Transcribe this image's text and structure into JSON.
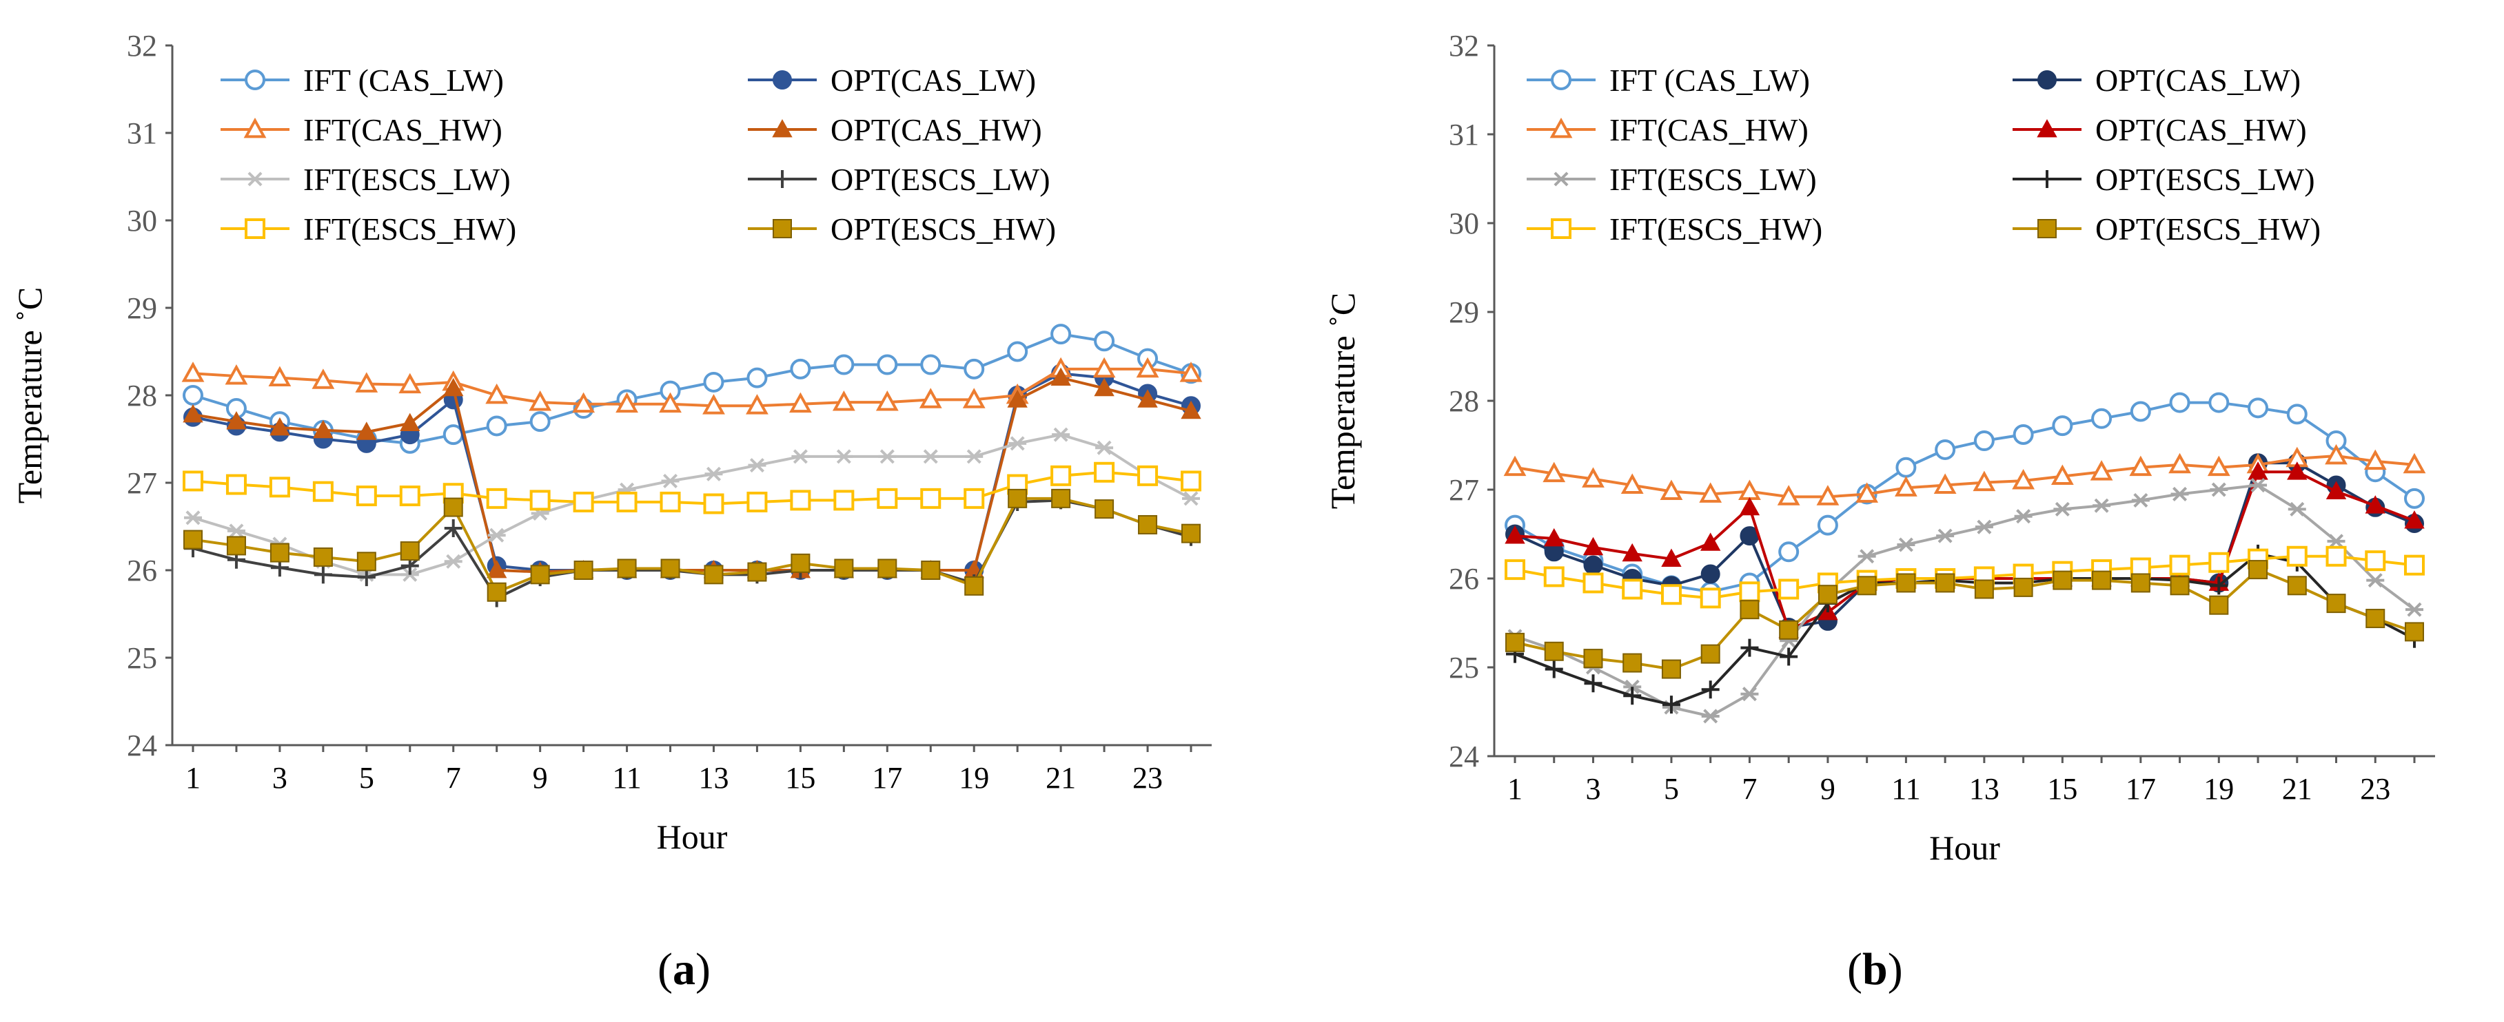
{
  "chart_data": [
    {
      "type": "line",
      "panel": "a",
      "ylabel": "Temperature  ˚C",
      "xlabel": "Hour",
      "ylim": [
        24,
        32
      ],
      "yticks": [
        24,
        25,
        26,
        27,
        28,
        29,
        30,
        31,
        32
      ],
      "xticks": [
        1,
        3,
        5,
        7,
        9,
        11,
        13,
        15,
        17,
        19,
        21,
        23
      ],
      "x": [
        1,
        2,
        3,
        4,
        5,
        6,
        7,
        8,
        9,
        10,
        11,
        12,
        13,
        14,
        15,
        16,
        17,
        18,
        19,
        20,
        21,
        22,
        23,
        24
      ],
      "grid": false,
      "legend": "top, two columns",
      "series": [
        {
          "name": "IFT (CAS_LW)",
          "color": "#5B9BD5",
          "marker": "circle-open",
          "values": [
            28.0,
            27.85,
            27.7,
            27.6,
            27.5,
            27.45,
            27.55,
            27.65,
            27.7,
            27.85,
            27.95,
            28.05,
            28.15,
            28.2,
            28.3,
            28.35,
            28.35,
            28.35,
            28.3,
            28.5,
            28.7,
            28.62,
            28.42,
            28.25
          ]
        },
        {
          "name": "OPT(CAS_LW)",
          "color": "#2F5597",
          "marker": "circle",
          "values": [
            27.75,
            27.65,
            27.58,
            27.5,
            27.45,
            27.55,
            27.95,
            26.05,
            26.0,
            26.0,
            26.0,
            26.0,
            26.0,
            26.0,
            26.0,
            26.0,
            26.0,
            26.0,
            26.0,
            28.0,
            28.25,
            28.2,
            28.02,
            27.88
          ]
        },
        {
          "name": "IFT(CAS_HW)",
          "color": "#ED7D31",
          "marker": "triangle-open",
          "values": [
            28.25,
            28.22,
            28.2,
            28.17,
            28.13,
            28.12,
            28.15,
            28.0,
            27.92,
            27.9,
            27.9,
            27.9,
            27.88,
            27.88,
            27.9,
            27.92,
            27.92,
            27.95,
            27.95,
            28.0,
            28.3,
            28.3,
            28.3,
            28.25
          ]
        },
        {
          "name": "OPT(CAS_HW)",
          "color": "#C55A11",
          "marker": "triangle",
          "values": [
            27.78,
            27.7,
            27.63,
            27.6,
            27.58,
            27.68,
            28.08,
            26.0,
            25.98,
            26.0,
            26.0,
            26.0,
            26.0,
            26.0,
            26.0,
            26.0,
            26.0,
            26.0,
            26.0,
            27.95,
            28.2,
            28.08,
            27.95,
            27.82
          ]
        },
        {
          "name": "IFT(ESCS_LW)",
          "color": "#BFBFBF",
          "marker": "star",
          "values": [
            26.6,
            26.45,
            26.3,
            26.1,
            25.95,
            25.95,
            26.1,
            26.4,
            26.65,
            26.8,
            26.92,
            27.02,
            27.1,
            27.2,
            27.3,
            27.3,
            27.3,
            27.3,
            27.3,
            27.45,
            27.55,
            27.4,
            27.08,
            26.82
          ]
        },
        {
          "name": "OPT(ESCS_LW)",
          "color": "#404040",
          "marker": "plus",
          "values": [
            26.25,
            26.12,
            26.03,
            25.95,
            25.92,
            26.05,
            26.48,
            25.68,
            25.92,
            26.0,
            26.0,
            26.0,
            25.95,
            25.95,
            26.0,
            26.0,
            26.0,
            26.0,
            25.85,
            26.78,
            26.8,
            26.7,
            26.52,
            26.38
          ]
        },
        {
          "name": "IFT(ESCS_HW)",
          "color": "#FFC000",
          "marker": "square-open",
          "values": [
            27.02,
            26.98,
            26.95,
            26.9,
            26.85,
            26.85,
            26.88,
            26.82,
            26.8,
            26.78,
            26.78,
            26.78,
            26.76,
            26.78,
            26.8,
            26.8,
            26.82,
            26.82,
            26.82,
            26.98,
            27.08,
            27.12,
            27.08,
            27.02
          ]
        },
        {
          "name": "OPT(ESCS_HW)",
          "color": "#BF9000",
          "marker": "square",
          "values": [
            26.35,
            26.28,
            26.2,
            26.15,
            26.1,
            26.22,
            26.72,
            25.75,
            25.95,
            26.0,
            26.02,
            26.02,
            25.95,
            25.98,
            26.08,
            26.02,
            26.02,
            26.0,
            25.82,
            26.82,
            26.82,
            26.7,
            26.52,
            26.42
          ]
        }
      ]
    },
    {
      "type": "line",
      "panel": "b",
      "ylabel": "Temperature  ˚C",
      "xlabel": "Hour",
      "ylim": [
        24,
        32
      ],
      "yticks": [
        24,
        25,
        26,
        27,
        28,
        29,
        30,
        31,
        32
      ],
      "xticks": [
        1,
        3,
        5,
        7,
        9,
        11,
        13,
        15,
        17,
        19,
        21,
        23
      ],
      "x": [
        1,
        2,
        3,
        4,
        5,
        6,
        7,
        8,
        9,
        10,
        11,
        12,
        13,
        14,
        15,
        16,
        17,
        18,
        19,
        20,
        21,
        22,
        23,
        24
      ],
      "grid": false,
      "legend": "top, two columns",
      "series": [
        {
          "name": "IFT (CAS_LW)",
          "color": "#5B9BD5",
          "marker": "circle-open",
          "values": [
            26.6,
            26.35,
            26.2,
            26.05,
            25.92,
            25.85,
            25.95,
            26.3,
            26.6,
            26.95,
            27.25,
            27.45,
            27.55,
            27.62,
            27.72,
            27.8,
            27.88,
            27.98,
            27.98,
            27.92,
            27.85,
            27.55,
            27.2,
            26.9
          ]
        },
        {
          "name": "OPT(CAS_LW)",
          "color": "#1F3864",
          "marker": "circle",
          "values": [
            26.5,
            26.3,
            26.15,
            26.0,
            25.92,
            26.05,
            26.48,
            25.45,
            25.52,
            25.95,
            26.0,
            26.0,
            26.0,
            26.0,
            26.0,
            26.0,
            26.0,
            26.0,
            25.95,
            27.3,
            27.3,
            27.05,
            26.8,
            26.62
          ]
        },
        {
          "name": "IFT(CAS_HW)",
          "color": "#ED7D31",
          "marker": "triangle-open",
          "values": [
            27.25,
            27.18,
            27.12,
            27.05,
            26.98,
            26.95,
            26.98,
            26.92,
            26.92,
            26.95,
            27.02,
            27.05,
            27.08,
            27.1,
            27.15,
            27.2,
            27.25,
            27.28,
            27.25,
            27.28,
            27.35,
            27.38,
            27.32,
            27.28
          ]
        },
        {
          "name": "OPT(CAS_HW)",
          "color": "#C00000",
          "marker": "triangle",
          "values": [
            26.48,
            26.45,
            26.35,
            26.28,
            26.22,
            26.4,
            26.8,
            25.42,
            25.62,
            25.95,
            26.0,
            26.0,
            26.0,
            26.0,
            26.0,
            26.0,
            26.0,
            26.0,
            25.95,
            27.2,
            27.2,
            26.98,
            26.82,
            26.65
          ]
        },
        {
          "name": "IFT(ESCS_LW)",
          "color": "#A6A6A6",
          "marker": "star",
          "values": [
            25.35,
            25.2,
            25.0,
            24.78,
            24.55,
            24.45,
            24.7,
            25.3,
            25.85,
            26.25,
            26.38,
            26.48,
            26.58,
            26.7,
            26.78,
            26.82,
            26.88,
            26.95,
            27.0,
            27.05,
            26.78,
            26.42,
            25.98,
            25.65
          ]
        },
        {
          "name": "OPT(ESCS_LW)",
          "color": "#262626",
          "marker": "plus",
          "values": [
            25.15,
            24.98,
            24.82,
            24.68,
            24.58,
            24.75,
            25.22,
            25.12,
            25.72,
            25.95,
            25.95,
            25.98,
            25.95,
            25.95,
            26.0,
            26.0,
            26.0,
            25.98,
            25.92,
            26.28,
            26.18,
            25.72,
            25.55,
            25.32
          ]
        },
        {
          "name": "IFT(ESCS_HW)",
          "color": "#FFC000",
          "marker": "square-open",
          "values": [
            26.1,
            26.02,
            25.95,
            25.88,
            25.82,
            25.78,
            25.85,
            25.88,
            25.95,
            25.98,
            26.0,
            26.0,
            26.02,
            26.05,
            26.08,
            26.1,
            26.12,
            26.15,
            26.18,
            26.22,
            26.25,
            26.25,
            26.2,
            26.15
          ]
        },
        {
          "name": "OPT(ESCS_HW)",
          "color": "#BF9000",
          "marker": "square",
          "values": [
            25.28,
            25.18,
            25.1,
            25.05,
            24.98,
            25.15,
            25.65,
            25.42,
            25.82,
            25.92,
            25.95,
            25.95,
            25.88,
            25.9,
            25.98,
            25.98,
            25.95,
            25.92,
            25.7,
            26.1,
            25.92,
            25.72,
            25.55,
            25.4
          ]
        }
      ]
    }
  ],
  "panel_labels": [
    "(a)",
    "(b)"
  ]
}
